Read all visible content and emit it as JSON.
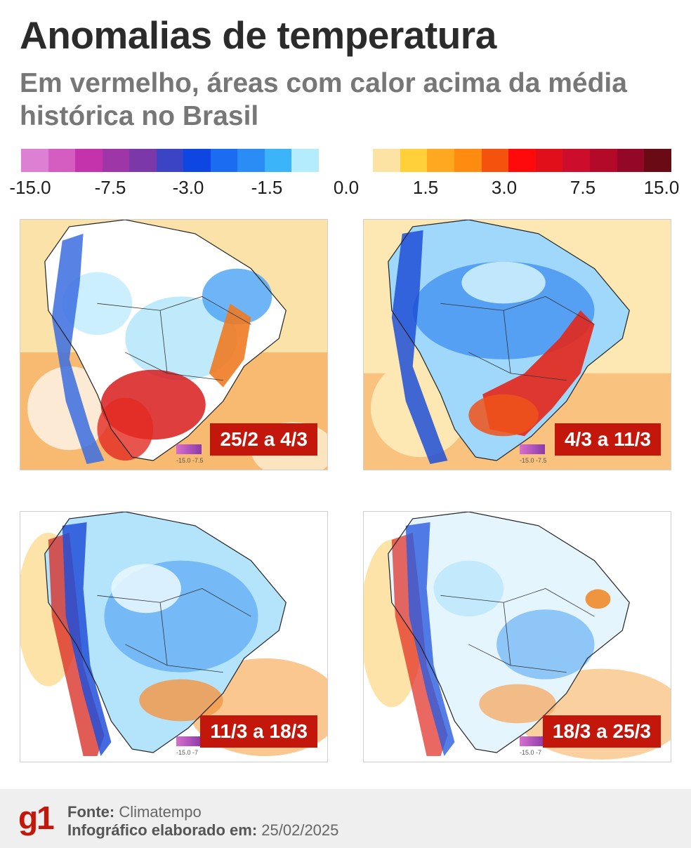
{
  "header": {
    "title": "Anomalias de temperatura",
    "subtitle": "Em vermelho, áreas com calor acima da média histórica no Brasil"
  },
  "legend": {
    "cold_colors": [
      "#dd7fd2",
      "#d55cc1",
      "#c433ac",
      "#9e36a8",
      "#7a38a8",
      "#3b44c4",
      "#0d46e0",
      "#1b6cf0",
      "#2a8cf5",
      "#3cb4fa",
      "#b4ecfd"
    ],
    "warm_colors": [
      "#fde3a3",
      "#ffd03a",
      "#ffa820",
      "#ff8c10",
      "#f5520e",
      "#ff0a0a",
      "#e0101a",
      "#cc0e2c",
      "#b30a2a",
      "#920826",
      "#6a0a14"
    ],
    "ticks": [
      {
        "label": "-15.0",
        "value": -15.0
      },
      {
        "label": "-7.5",
        "value": -7.5
      },
      {
        "label": "-3.0",
        "value": -3.0
      },
      {
        "label": "-1.5",
        "value": -1.5
      },
      {
        "label": "0.0",
        "value": 0.0
      },
      {
        "label": "1.5",
        "value": 1.5
      },
      {
        "label": "3.0",
        "value": 3.0
      },
      {
        "label": "7.5",
        "value": 7.5
      },
      {
        "label": "15.0",
        "value": 15.0
      }
    ]
  },
  "maps": [
    {
      "period": "25/2 a 4/3",
      "mini_legend": "-15.0  -7.5"
    },
    {
      "period": "4/3 a 11/3",
      "mini_legend": "-15.0  -7.5"
    },
    {
      "period": "11/3 a 18/3",
      "mini_legend": "-15.0  -7"
    },
    {
      "period": "18/3 a 25/3",
      "mini_legend": "-15.0  -7"
    }
  ],
  "footer": {
    "logo": "g1",
    "source_label": "Fonte:",
    "source_value": "Climatempo",
    "date_label": "Infográfico elaborado em:",
    "date_value": "25/02/2025"
  }
}
